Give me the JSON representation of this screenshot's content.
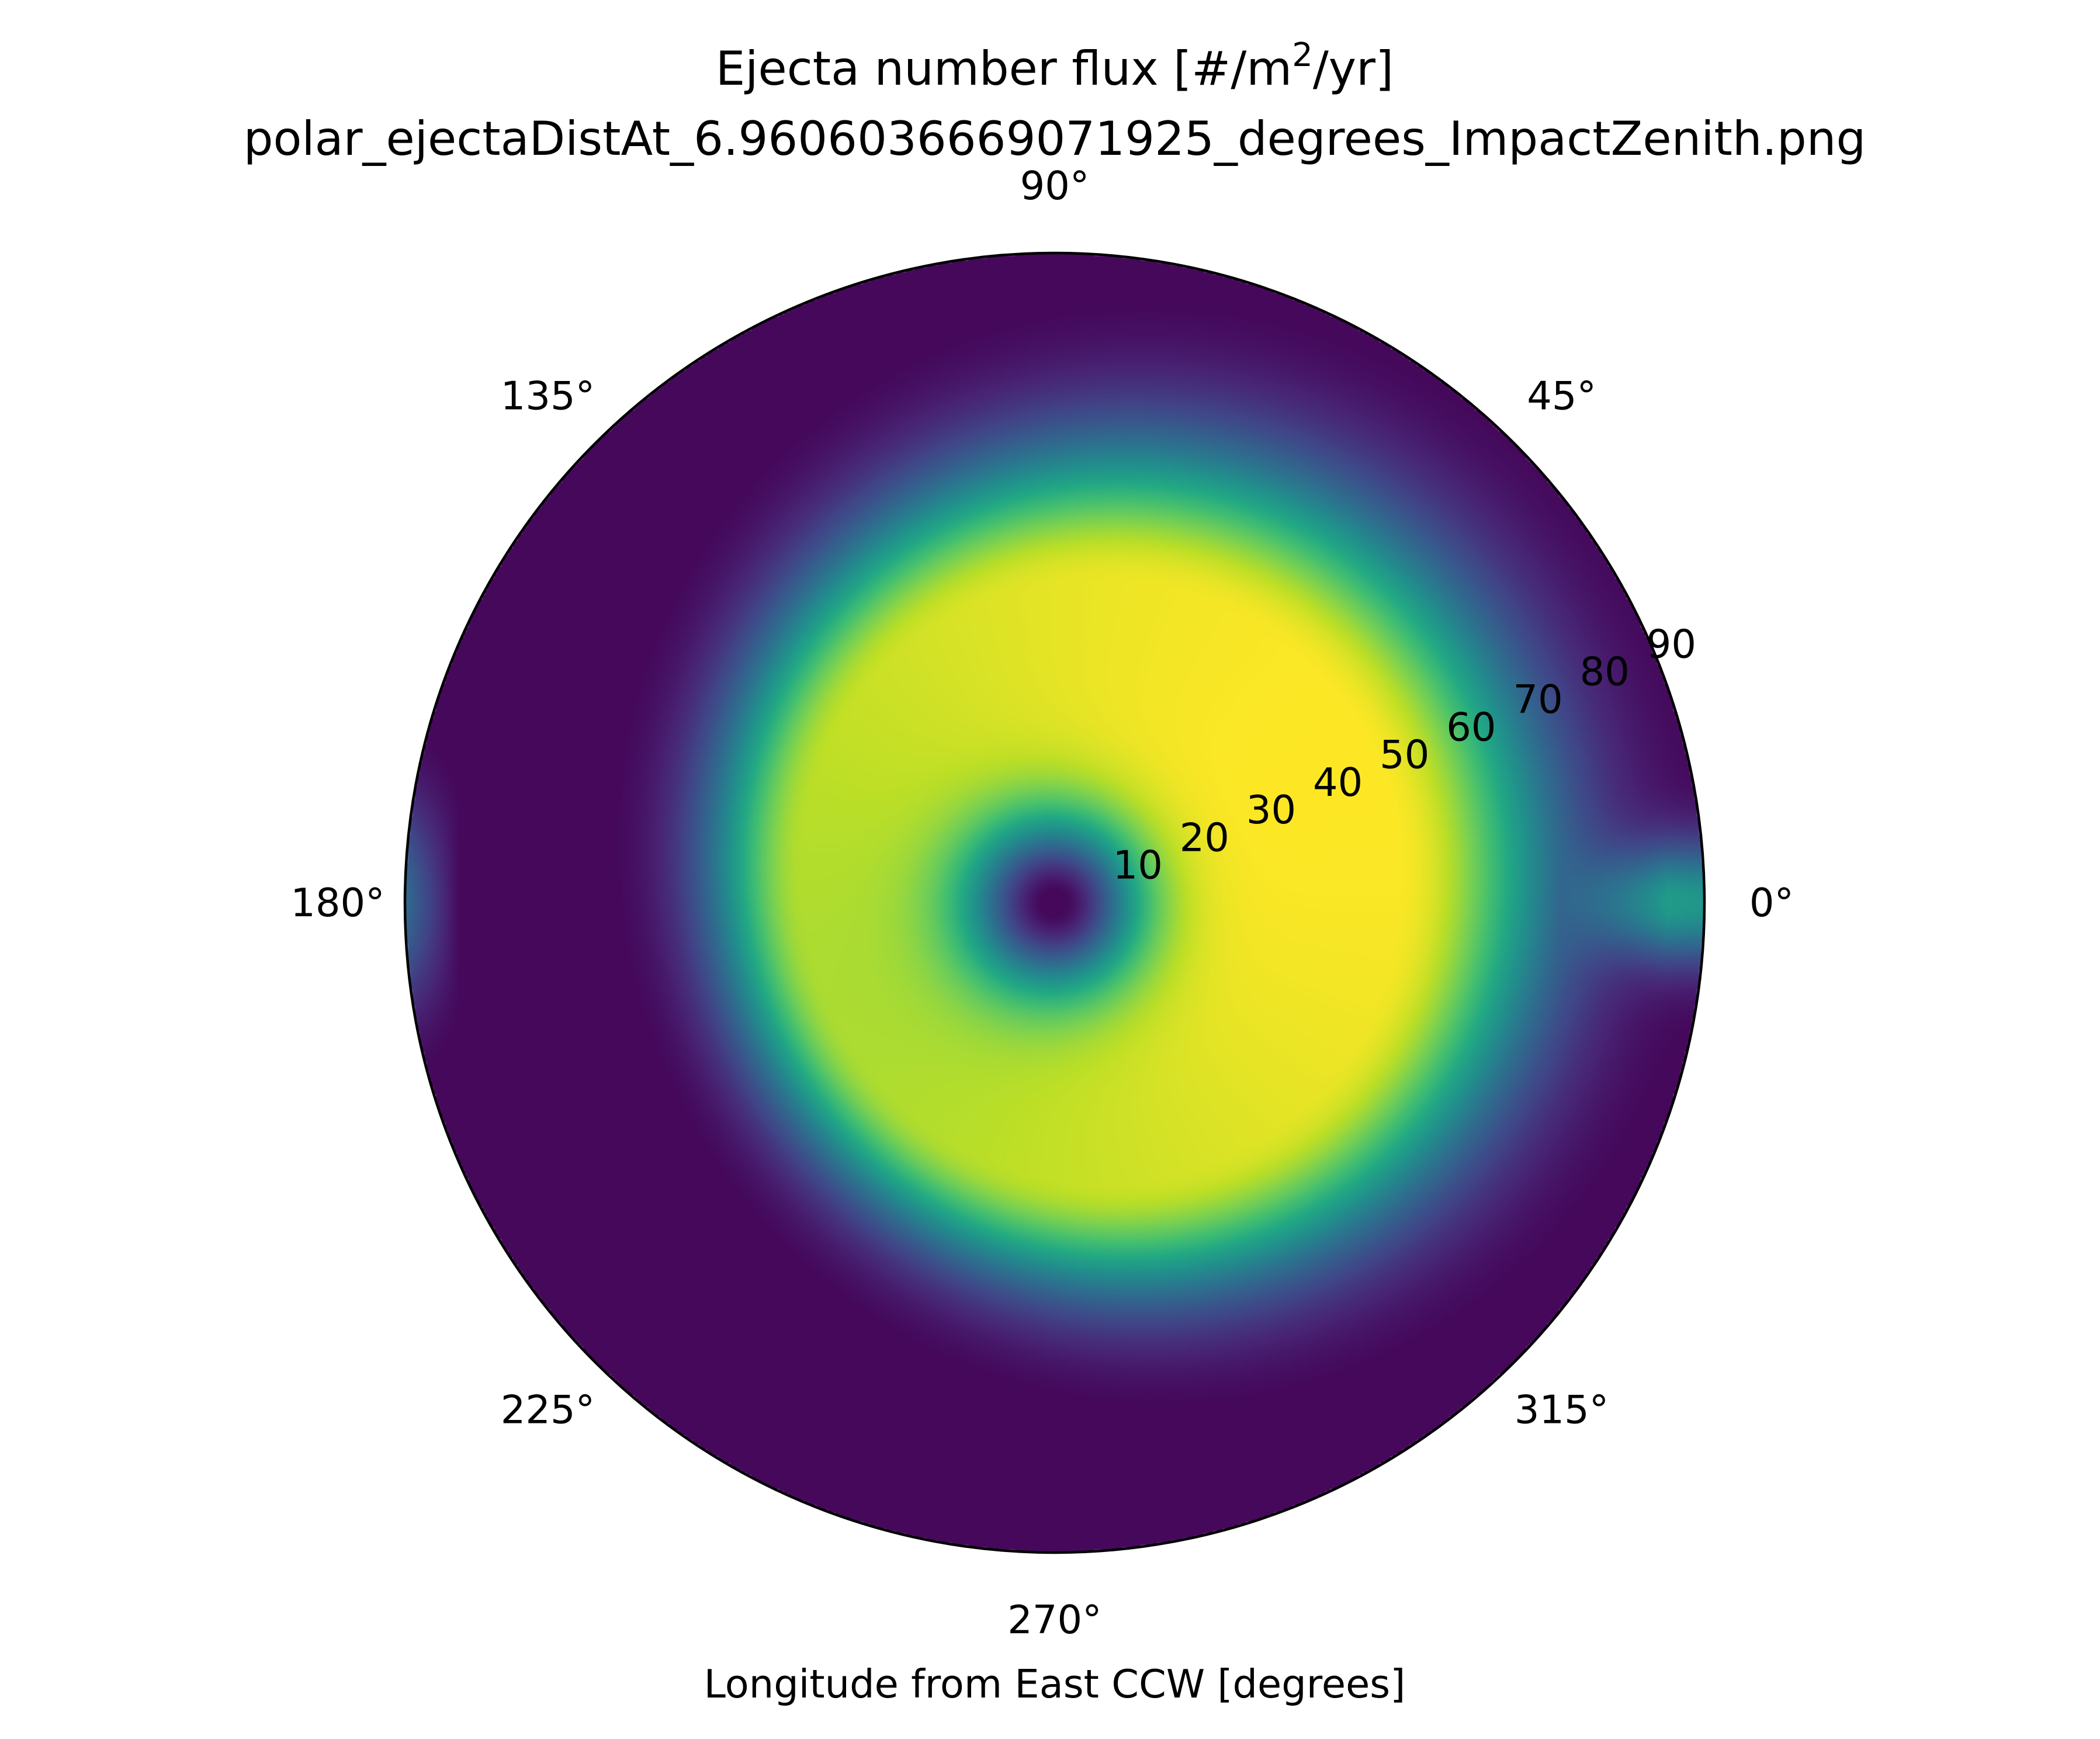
{
  "chart_data": {
    "type": "heatmap",
    "projection": "polar",
    "title": "Ejecta number flux [#/m²/yr]",
    "title_parts": {
      "before": "Ejecta number flux [#/m",
      "superscript": "2",
      "after": "/yr]"
    },
    "subtitle": "polar_ejectaDistAt_6.960603666907192​5_degrees_ImpactZenith.png",
    "xlabel": "Longitude from East CCW [degrees]",
    "theta_ticks": [
      {
        "angle": 0,
        "label": "0°"
      },
      {
        "angle": 45,
        "label": "45°"
      },
      {
        "angle": 90,
        "label": "90°"
      },
      {
        "angle": 135,
        "label": "135°"
      },
      {
        "angle": 180,
        "label": "180°"
      },
      {
        "angle": 225,
        "label": "225°"
      },
      {
        "angle": 270,
        "label": "270°"
      },
      {
        "angle": 315,
        "label": "315°"
      }
    ],
    "r_ticks": [
      {
        "value": 10,
        "label": "10"
      },
      {
        "value": 20,
        "label": "20"
      },
      {
        "value": 30,
        "label": "30"
      },
      {
        "value": 40,
        "label": "40"
      },
      {
        "value": 50,
        "label": "50"
      },
      {
        "value": 60,
        "label": "60"
      },
      {
        "value": 70,
        "label": "70"
      },
      {
        "value": 80,
        "label": "80"
      },
      {
        "value": 90,
        "label": "90"
      }
    ],
    "r_range": [
      0,
      90
    ],
    "r_tick_label_angle": 22.5,
    "grid": false,
    "colormap": "viridis",
    "field_description": {
      "center_r": 0,
      "center_value": 0.02,
      "peak_r_min": 34,
      "peak_r_max": 50,
      "peak_direction_deg": 25,
      "min_at_direction_deg": 180,
      "value_at_outer_edge_near_0deg": 0.5
    }
  }
}
